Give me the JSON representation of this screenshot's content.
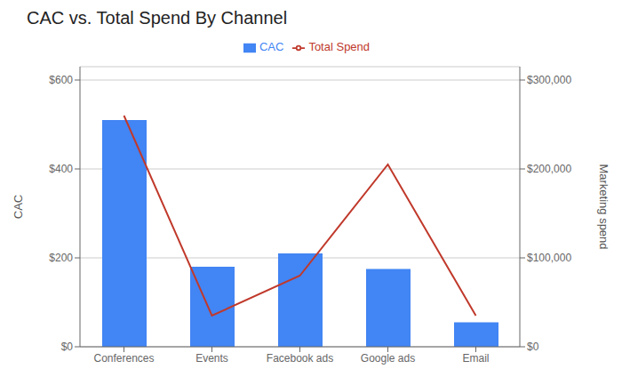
{
  "chart_data": {
    "type": "bar",
    "title": "CAC vs. Total Spend By Channel",
    "categories": [
      "Conferences",
      "Events",
      "Facebook ads",
      "Google ads",
      "Email"
    ],
    "series": [
      {
        "name": "CAC",
        "type": "bar",
        "color": "#4285f4",
        "values": [
          510,
          180,
          210,
          175,
          55
        ]
      },
      {
        "name": "Total Spend",
        "type": "line",
        "axis": "y2",
        "color": "#c0392b",
        "values": [
          260000,
          35000,
          80000,
          205000,
          35000
        ]
      }
    ],
    "ylabel": "CAC",
    "y2label": "Marketing spend",
    "ylim": [
      0,
      630
    ],
    "yticks": [
      {
        "value": 0,
        "label": "$0"
      },
      {
        "value": 200,
        "label": "$200"
      },
      {
        "value": 400,
        "label": "$400"
      },
      {
        "value": 600,
        "label": "$600"
      }
    ],
    "y2lim": [
      0,
      315000
    ],
    "y2ticks": [
      {
        "value": 0,
        "label": "$0"
      },
      {
        "value": 100000,
        "label": "$100,000"
      },
      {
        "value": 200000,
        "label": "$200,000"
      },
      {
        "value": 300000,
        "label": "$300,000"
      }
    ],
    "grid": true,
    "legend": "top"
  }
}
